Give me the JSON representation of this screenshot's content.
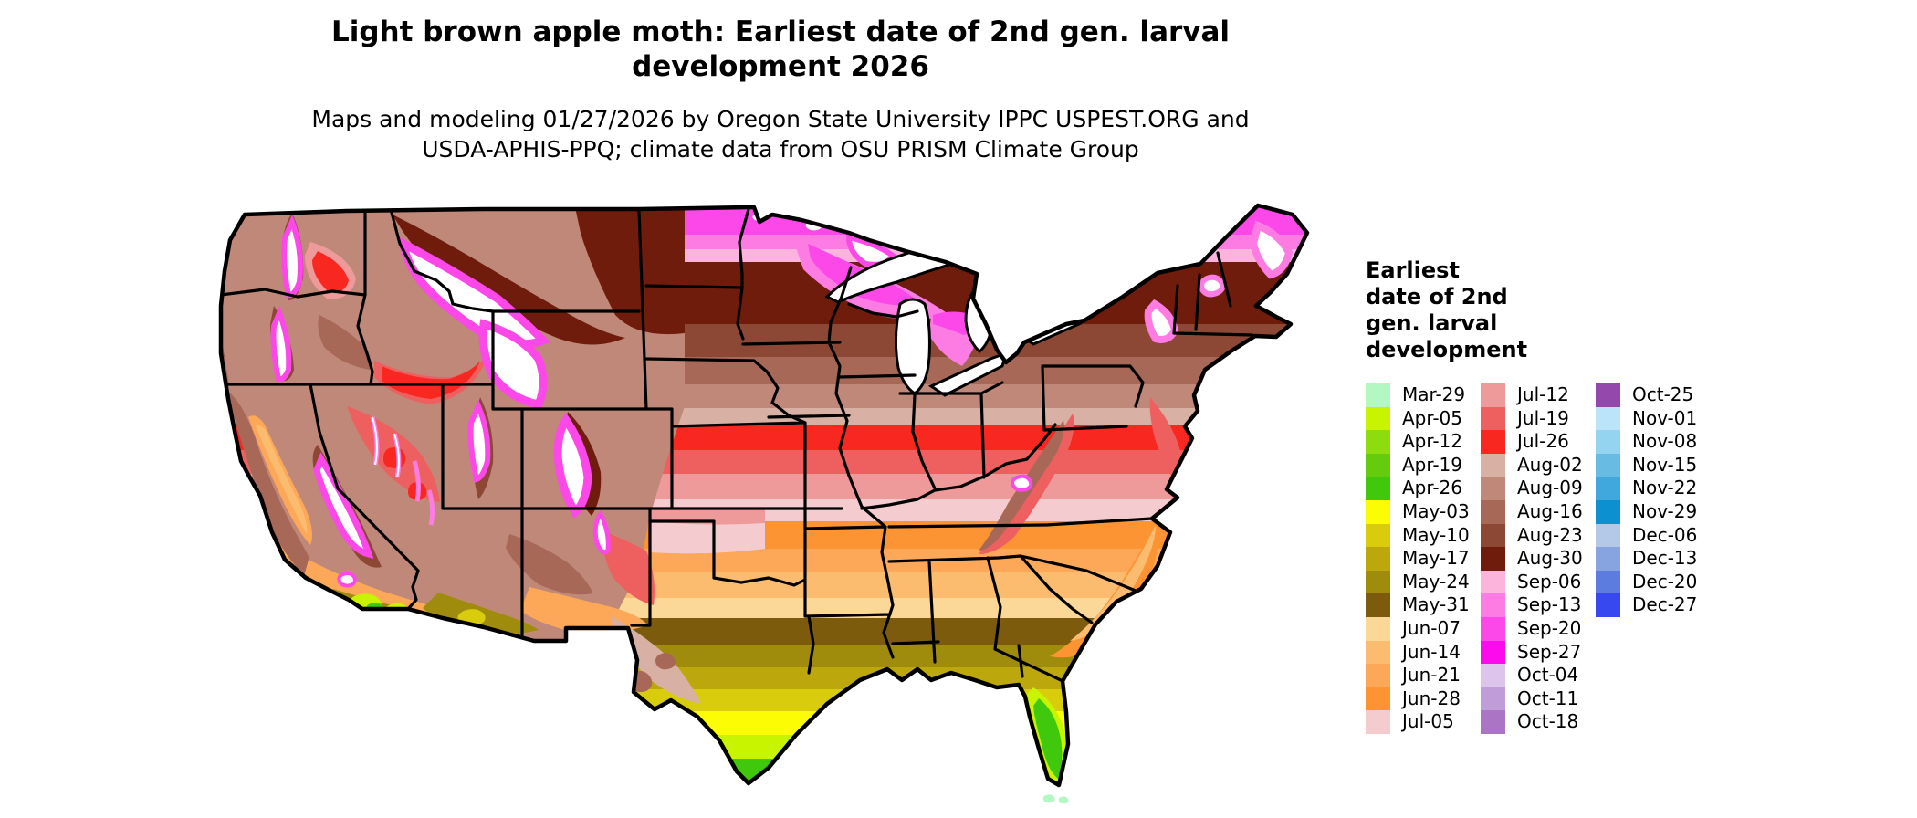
{
  "title": "Light brown apple moth: Earliest date of 2nd gen. larval\ndevelopment 2026",
  "subtitle": "Maps and modeling 01/27/2026 by Oregon State University IPPC USPEST.ORG and\nUSDA-APHIS-PPQ; climate data from OSU PRISM Climate Group",
  "legend": {
    "title": "Earliest\ndate of 2nd\ngen. larval\ndevelopment",
    "columns": [
      [
        {
          "label": "Mar-29",
          "color": "#b3f8c3"
        },
        {
          "label": "Apr-05",
          "color": "#c8f400"
        },
        {
          "label": "Apr-12",
          "color": "#8cdc10"
        },
        {
          "label": "Apr-19",
          "color": "#64cc0c"
        },
        {
          "label": "Apr-26",
          "color": "#3fc80c"
        },
        {
          "label": "May-03",
          "color": "#fcfc04"
        },
        {
          "label": "May-10",
          "color": "#d8cc0c"
        },
        {
          "label": "May-17",
          "color": "#bca80c"
        },
        {
          "label": "May-24",
          "color": "#a08c0c"
        },
        {
          "label": "May-31",
          "color": "#7c5c0c"
        },
        {
          "label": "Jun-07",
          "color": "#fcd898"
        },
        {
          "label": "Jun-14",
          "color": "#fcbc70"
        },
        {
          "label": "Jun-21",
          "color": "#fca858"
        },
        {
          "label": "Jun-28",
          "color": "#fc9434"
        },
        {
          "label": "Jul-05",
          "color": "#f4ccd0"
        }
      ],
      [
        {
          "label": "Jul-12",
          "color": "#ef9a9a"
        },
        {
          "label": "Jul-19",
          "color": "#ee6060"
        },
        {
          "label": "Jul-26",
          "color": "#f82820"
        },
        {
          "label": "Aug-02",
          "color": "#d8b0a4"
        },
        {
          "label": "Aug-09",
          "color": "#c08878"
        },
        {
          "label": "Aug-16",
          "color": "#a86858"
        },
        {
          "label": "Aug-23",
          "color": "#8c4834"
        },
        {
          "label": "Aug-30",
          "color": "#701c0c"
        },
        {
          "label": "Sep-06",
          "color": "#fcb4dc"
        },
        {
          "label": "Sep-13",
          "color": "#fc7ce4"
        },
        {
          "label": "Sep-20",
          "color": "#fc48e8"
        },
        {
          "label": "Sep-27",
          "color": "#fc0cec"
        },
        {
          "label": "Oct-04",
          "color": "#dcc4ec"
        },
        {
          "label": "Oct-11",
          "color": "#c09cd8"
        },
        {
          "label": "Oct-18",
          "color": "#ac74c4"
        }
      ],
      [
        {
          "label": "Oct-25",
          "color": "#9448ac"
        },
        {
          "label": "Nov-01",
          "color": "#bce4f8"
        },
        {
          "label": "Nov-08",
          "color": "#94d4f0"
        },
        {
          "label": "Nov-15",
          "color": "#68bce4"
        },
        {
          "label": "Nov-22",
          "color": "#40a8dc"
        },
        {
          "label": "Nov-29",
          "color": "#0c90d0"
        },
        {
          "label": "Dec-06",
          "color": "#b4c8e8"
        },
        {
          "label": "Dec-13",
          "color": "#88a4e0"
        },
        {
          "label": "Dec-20",
          "color": "#5c7ce0"
        },
        {
          "label": "Dec-27",
          "color": "#3848f0"
        }
      ]
    ]
  },
  "colors": {
    "white": "#ffffff",
    "black": "#000000",
    "background": "#ffffff"
  },
  "map": {
    "bands": [
      {
        "from": 0,
        "to": 52,
        "date": "Sep-20"
      },
      {
        "from": 52,
        "to": 68,
        "date": "Sep-13"
      },
      {
        "from": 68,
        "to": 82,
        "date": "Sep-06"
      },
      {
        "from": 82,
        "to": 150,
        "date": "Aug-30"
      },
      {
        "from": 150,
        "to": 186,
        "date": "Aug-23"
      },
      {
        "from": 186,
        "to": 216,
        "date": "Aug-16"
      },
      {
        "from": 216,
        "to": 242,
        "date": "Aug-09"
      },
      {
        "from": 242,
        "to": 260,
        "date": "Aug-02"
      },
      {
        "from": 260,
        "to": 288,
        "date": "Jul-26"
      },
      {
        "from": 288,
        "to": 314,
        "date": "Jul-19"
      },
      {
        "from": 314,
        "to": 342,
        "date": "Jul-12"
      },
      {
        "from": 342,
        "to": 366,
        "date": "Jul-05"
      },
      {
        "from": 366,
        "to": 396,
        "date": "Jun-28"
      },
      {
        "from": 396,
        "to": 422,
        "date": "Jun-21"
      },
      {
        "from": 422,
        "to": 450,
        "date": "Jun-14"
      },
      {
        "from": 450,
        "to": 472,
        "date": "Jun-07"
      },
      {
        "from": 472,
        "to": 502,
        "date": "May-31"
      },
      {
        "from": 502,
        "to": 526,
        "date": "May-24"
      },
      {
        "from": 526,
        "to": 550,
        "date": "May-17"
      },
      {
        "from": 550,
        "to": 574,
        "date": "May-10"
      },
      {
        "from": 574,
        "to": 600,
        "date": "May-03"
      },
      {
        "from": 600,
        "to": 626,
        "date": "Apr-05"
      },
      {
        "from": 626,
        "to": 690,
        "date": "Apr-26"
      }
    ]
  },
  "chart_data": {
    "type": "choropleth_map",
    "variable": "Earliest date of 2nd gen. larval development (2026)",
    "region": "Contiguous United States",
    "legend_position": "right",
    "categories": [
      "Mar-29",
      "Apr-05",
      "Apr-12",
      "Apr-19",
      "Apr-26",
      "May-03",
      "May-10",
      "May-17",
      "May-24",
      "May-31",
      "Jun-07",
      "Jun-14",
      "Jun-21",
      "Jun-28",
      "Jul-05",
      "Jul-12",
      "Jul-19",
      "Jul-26",
      "Aug-02",
      "Aug-09",
      "Aug-16",
      "Aug-23",
      "Aug-30",
      "Sep-06",
      "Sep-13",
      "Sep-20",
      "Sep-27",
      "Oct-04",
      "Oct-11",
      "Oct-18",
      "Oct-25",
      "Nov-01",
      "Nov-08",
      "Nov-15",
      "Nov-22",
      "Nov-29",
      "Dec-06",
      "Dec-13",
      "Dec-20",
      "Dec-27"
    ],
    "pattern_notes": [
      "South Texas tip and central/south Florida: Apr-05 to Apr-26 (green)",
      "Gulf coast band through south Texas, Louisiana, south Georgia: May-03 to May-31 (yellow to dark olive)",
      "Southeast coastal plain, Oklahoma, Tennessee, Carolinas coast: Jun-07 to Jun-28 (orange shades)",
      "Mid-latitude band Kansas to Virginia: Jul-05 to Jul-26 (pink to red)",
      "Upper Midwest, Dakotas, Great Lakes, interior Northeast: Aug-02 to Aug-30 (dusty brown to maroon)",
      "Northern Minnesota, North Dakota border, northern Wisconsin/Michigan, Maine: Sep-06 to Sep-27 (pink to magenta)",
      "High mountain West: white (development not reached) ringed by Sep-Oct magenta/purple",
      "California Central Valley orange (Jun), southern California and Arizona deserts May olive/green",
      "Florida Keys: Mar-29 (pale mint)"
    ]
  }
}
